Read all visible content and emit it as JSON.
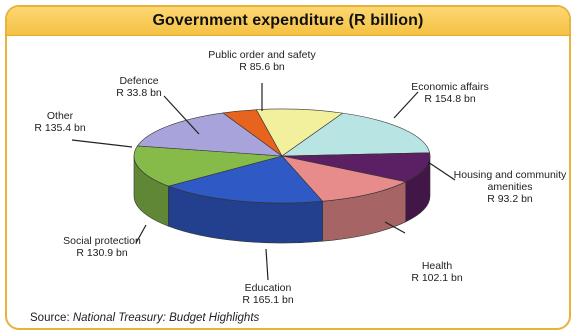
{
  "title": "Government expenditure (R billion)",
  "source": {
    "label": "Source",
    "text": "National Treasury: Budget Highlights"
  },
  "chart_data": {
    "type": "pie",
    "title": "Government expenditure (R billion)",
    "unit": "R billion",
    "slices": [
      {
        "name": "Public order and safety",
        "value": 85.6,
        "label": "R 85.6 bn",
        "color": "#f2ef9d"
      },
      {
        "name": "Economic affairs",
        "value": 154.8,
        "label": "R 154.8 bn",
        "color": "#b9e4e4"
      },
      {
        "name": "Housing and community amenities",
        "value": 93.2,
        "label": "R 93.2 bn",
        "color": "#5b1f63"
      },
      {
        "name": "Health",
        "value": 102.1,
        "label": "R 102.1 bn",
        "color": "#e88b8b"
      },
      {
        "name": "Education",
        "value": 165.1,
        "label": "R 165.1 bn",
        "color": "#2f59c4"
      },
      {
        "name": "Social protection",
        "value": 130.9,
        "label": "R 130.9 bn",
        "color": "#86bb49"
      },
      {
        "name": "Other",
        "value": 135.4,
        "label": "R 135.4 bn",
        "color": "#a8a3da"
      },
      {
        "name": "Defence",
        "value": 33.8,
        "label": "R 33.8 bn",
        "color": "#e8641e"
      }
    ]
  }
}
